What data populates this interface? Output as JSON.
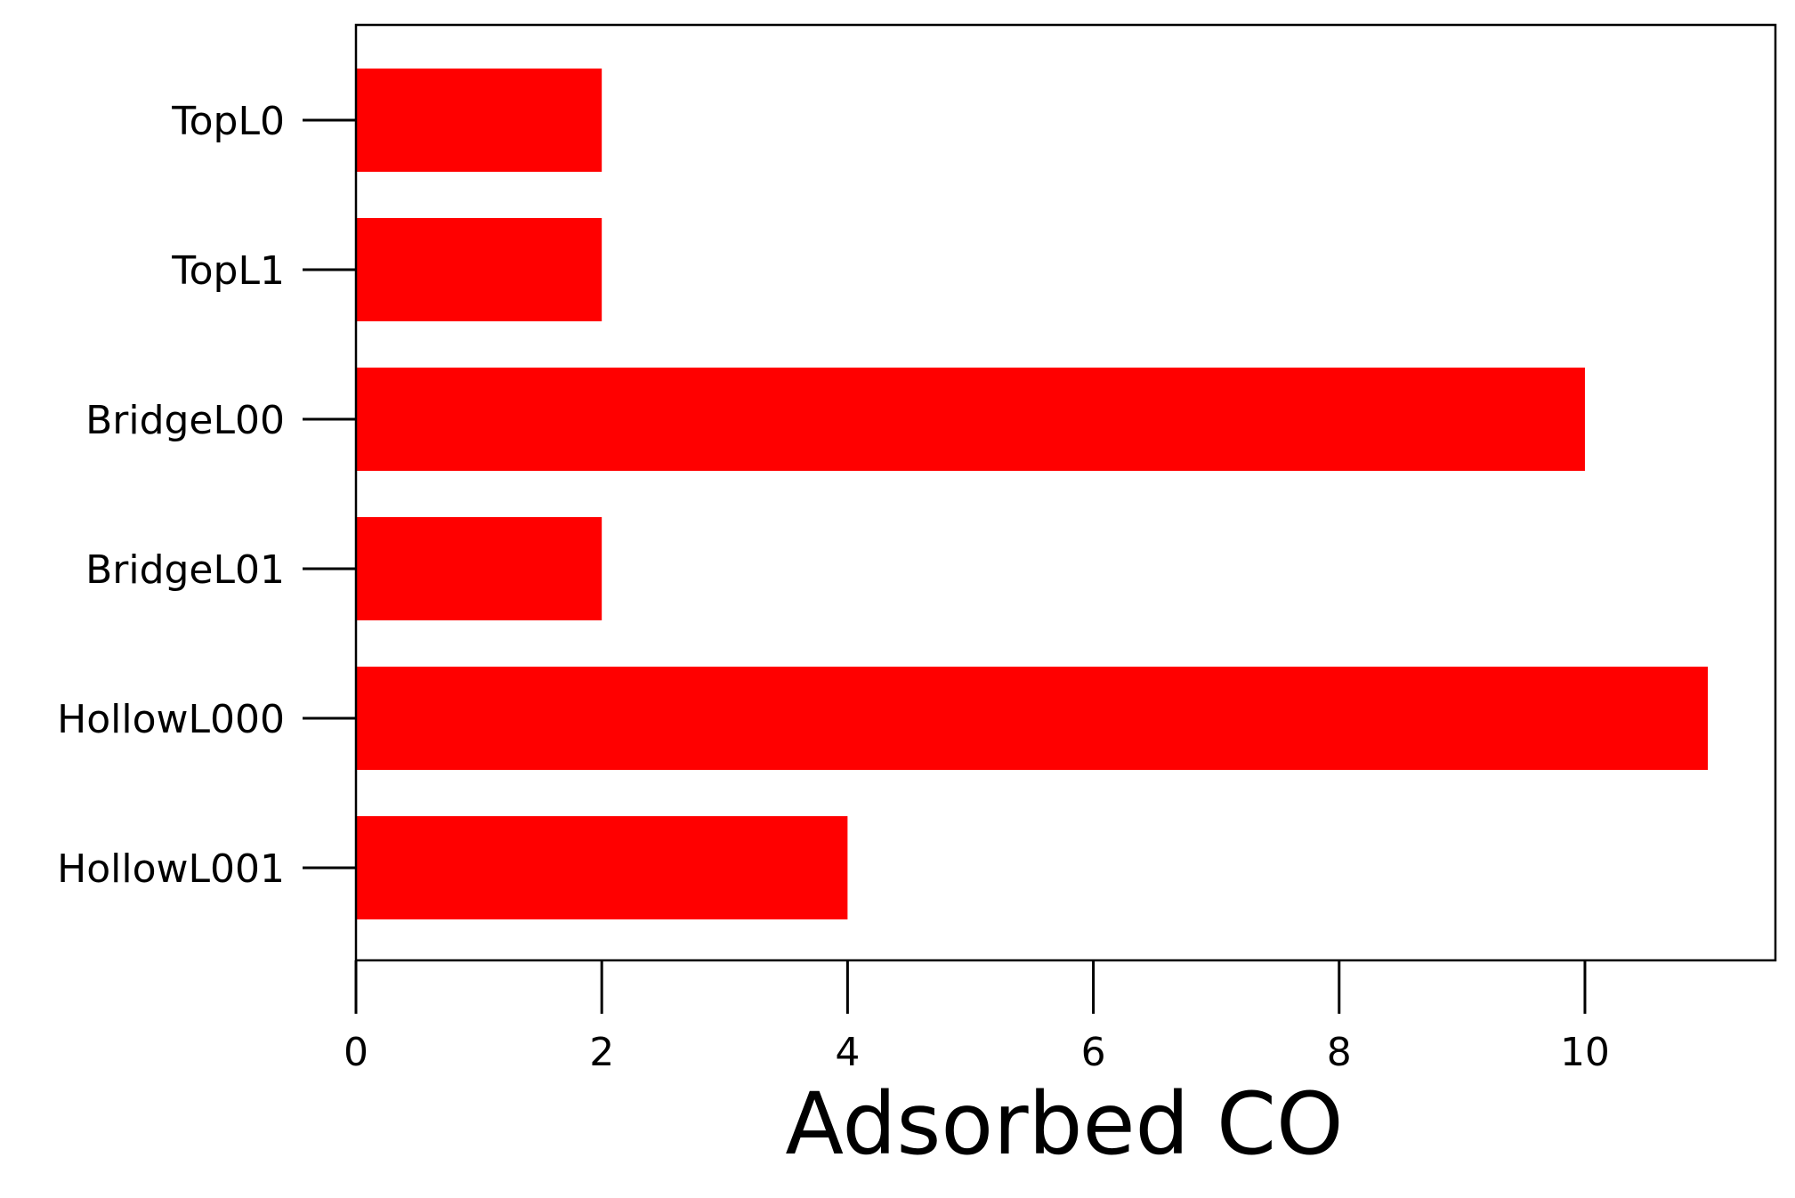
{
  "chart_data": {
    "type": "bar",
    "orientation": "horizontal",
    "title": "",
    "xlabel": "Adsorbed CO",
    "ylabel": "",
    "categories": [
      "TopL0",
      "TopL1",
      "BridgeL00",
      "BridgeL01",
      "HollowL000",
      "HollowL001"
    ],
    "series": [
      {
        "values": [
          2,
          2,
          10,
          2,
          11,
          4
        ],
        "color": "#ff0000"
      }
    ],
    "xlim": [
      0,
      11.55
    ],
    "xticks": [
      0,
      2,
      4,
      6,
      8,
      10
    ],
    "xtick_labels": [
      "0",
      "2",
      "4",
      "6",
      "8",
      "10"
    ],
    "grid": false,
    "legend": "none"
  }
}
